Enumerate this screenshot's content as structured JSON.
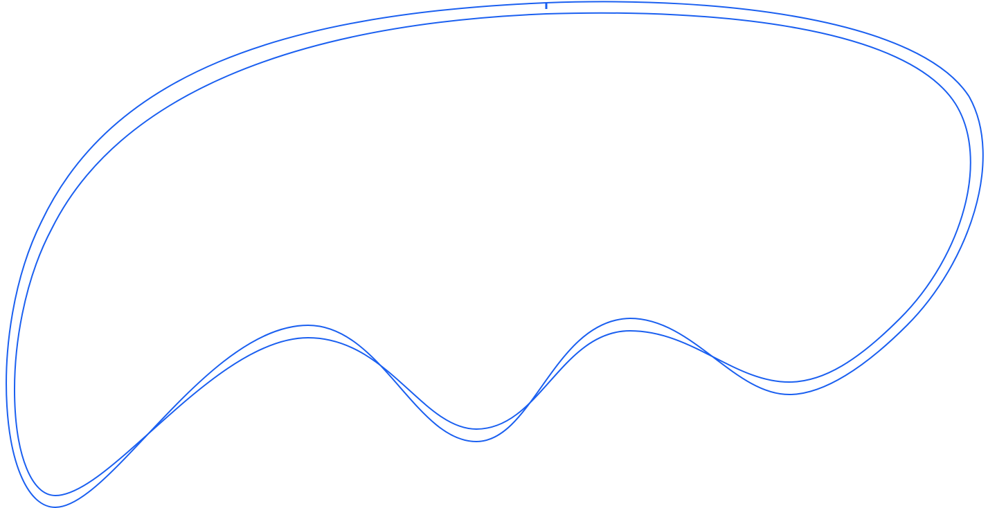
{
  "track": {
    "stroke_color": "#1a5ff0",
    "background_color": "#ffffff",
    "start_marker": true
  }
}
